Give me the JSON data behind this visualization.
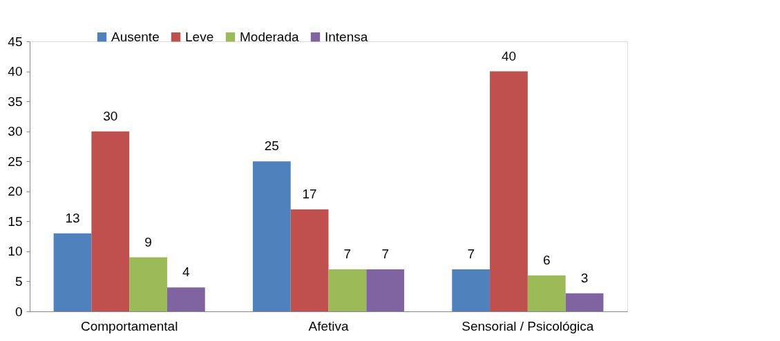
{
  "chart_data": {
    "type": "bar",
    "categories": [
      "Comportamental",
      "Afetiva",
      "Sensorial / Psicológica"
    ],
    "series": [
      {
        "name": "Ausente",
        "color": "#4f81bd",
        "values": [
          13,
          25,
          7
        ]
      },
      {
        "name": "Leve",
        "color": "#c0504d",
        "values": [
          30,
          17,
          40
        ]
      },
      {
        "name": "Moderada",
        "color": "#9bbb59",
        "values": [
          9,
          7,
          6
        ]
      },
      {
        "name": "Intensa",
        "color": "#8064a2",
        "values": [
          4,
          7,
          3
        ]
      }
    ],
    "ylim": [
      0,
      45
    ],
    "yticks": [
      0,
      5,
      10,
      15,
      20,
      25,
      30,
      35,
      40,
      45
    ],
    "data_labels": true,
    "legend": "top",
    "grid": false
  }
}
